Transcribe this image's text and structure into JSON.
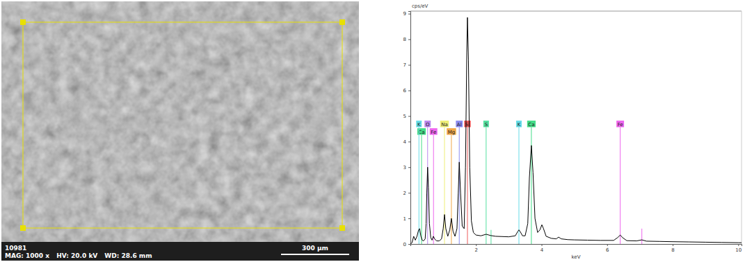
{
  "chart_data": {
    "type": "line",
    "y_label": "cps/eV",
    "x_label": "keV",
    "color": "#000000",
    "x": [
      0.0,
      0.05,
      0.1,
      0.15,
      0.2,
      0.25,
      0.28,
      0.32,
      0.36,
      0.4,
      0.45,
      0.48,
      0.5,
      0.525,
      0.55,
      0.58,
      0.62,
      0.66,
      0.7,
      0.74,
      0.8,
      0.88,
      0.95,
      1.0,
      1.04,
      1.08,
      1.14,
      1.2,
      1.25,
      1.3,
      1.36,
      1.42,
      1.46,
      1.49,
      1.53,
      1.58,
      1.64,
      1.68,
      1.72,
      1.74,
      1.77,
      1.81,
      1.86,
      1.92,
      2.0,
      2.15,
      2.31,
      2.45,
      2.6,
      2.8,
      3.0,
      3.2,
      3.28,
      3.31,
      3.35,
      3.42,
      3.5,
      3.58,
      3.63,
      3.69,
      3.74,
      3.8,
      3.88,
      3.95,
      4.01,
      4.06,
      4.14,
      4.3,
      4.45,
      4.52,
      4.6,
      4.8,
      5.0,
      5.4,
      5.8,
      6.2,
      6.32,
      6.4,
      6.47,
      6.6,
      6.9,
      7.06,
      7.2,
      7.6,
      8.0,
      8.5,
      9.0,
      9.5,
      10.0,
      10.1
    ],
    "values": [
      0.0,
      0.05,
      0.3,
      0.15,
      0.3,
      0.55,
      0.6,
      0.3,
      0.15,
      0.12,
      0.2,
      0.8,
      2.0,
      3.0,
      2.2,
      0.8,
      0.25,
      0.15,
      0.3,
      0.2,
      0.12,
      0.12,
      0.2,
      0.6,
      1.15,
      0.6,
      0.3,
      0.55,
      1.0,
      0.5,
      0.3,
      0.6,
      2.0,
      3.2,
      2.0,
      0.7,
      0.6,
      3.0,
      7.5,
      8.85,
      7.2,
      3.0,
      0.9,
      0.45,
      0.35,
      0.32,
      0.38,
      0.33,
      0.3,
      0.29,
      0.28,
      0.32,
      0.5,
      0.55,
      0.48,
      0.32,
      0.32,
      0.8,
      2.6,
      3.85,
      2.8,
      1.0,
      0.45,
      0.55,
      0.75,
      0.6,
      0.3,
      0.22,
      0.2,
      0.27,
      0.2,
      0.17,
      0.16,
      0.15,
      0.14,
      0.14,
      0.25,
      0.35,
      0.25,
      0.13,
      0.12,
      0.16,
      0.11,
      0.1,
      0.09,
      0.08,
      0.07,
      0.06,
      0.05,
      0.05
    ],
    "xlim": [
      0,
      10.1
    ],
    "ylim": [
      0,
      9.1
    ],
    "xticks": [
      2,
      4,
      6,
      8,
      10
    ],
    "yticks": [
      0,
      1,
      2,
      3,
      4,
      5,
      6,
      7,
      8,
      9
    ],
    "markers": [
      {
        "label": "K",
        "energy": 0.26,
        "color": "#66dde8"
      },
      {
        "label": "Ca",
        "energy": 0.34,
        "color": "#44dd88"
      },
      {
        "label": "O",
        "energy": 0.525,
        "color": "#bb88ee"
      },
      {
        "label": "Fe",
        "energy": 0.705,
        "color": "#ee66ee"
      },
      {
        "label": "Na",
        "energy": 1.04,
        "color": "#eeee77"
      },
      {
        "label": "Mg",
        "energy": 1.25,
        "color": "#f0a848"
      },
      {
        "label": "Al",
        "energy": 1.49,
        "color": "#8c8cf0"
      },
      {
        "label": "Si",
        "energy": 1.74,
        "color": "#ee5a5a"
      },
      {
        "label": "S",
        "energy": 2.31,
        "color": "#55e0a0"
      },
      {
        "label": "K",
        "energy": 3.31,
        "color": "#66dde8"
      },
      {
        "label": "Ca",
        "energy": 3.69,
        "color": "#44dd88"
      },
      {
        "label": "Fe",
        "energy": 6.4,
        "color": "#ee66ee"
      }
    ],
    "minor_lines": [
      {
        "energy": 2.46,
        "height": 0.55,
        "color": "#55e0a0"
      },
      {
        "energy": 7.06,
        "height": 0.6,
        "color": "#ee66ee"
      }
    ]
  },
  "micrograph": {
    "id": "10981",
    "mag": "MAG: 1000 x",
    "hv": "HV: 20.0 kV",
    "wd": "WD: 28.6 mm",
    "scale_bar": "300 µm"
  }
}
